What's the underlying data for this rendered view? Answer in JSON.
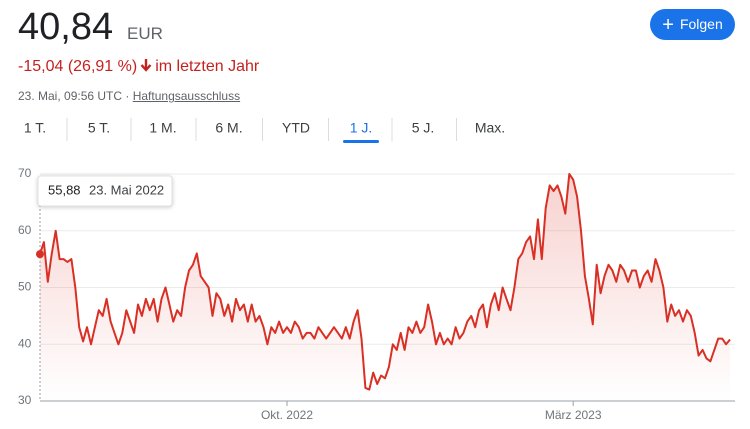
{
  "header": {
    "price": "40,84",
    "currency": "EUR",
    "change": "-15,04 (26,91 %)",
    "period": "im letzten Jahr",
    "timestamp": "23. Mai, 09:56 UTC ·",
    "disclaimer": "Haftungsausschluss",
    "follow": "Folgen"
  },
  "tabs": {
    "items": [
      "1 T.",
      "5 T.",
      "1 M.",
      "6 M.",
      "YTD",
      "1 J.",
      "5 J.",
      "Max."
    ],
    "active": 5
  },
  "chart_data": {
    "type": "line",
    "x": [
      0,
      1,
      2,
      3,
      4,
      5,
      6,
      7,
      8,
      9,
      10,
      11,
      12,
      13,
      14,
      15,
      16,
      17,
      18,
      19,
      20,
      21,
      22,
      23,
      24,
      25,
      26,
      27,
      28,
      29,
      30,
      31,
      32,
      33,
      34,
      35,
      36,
      37,
      38,
      39,
      40,
      41,
      42,
      43,
      44,
      45,
      46,
      47,
      48,
      49,
      50,
      51,
      52,
      53,
      54,
      55,
      56,
      57,
      58,
      59,
      60,
      61,
      62,
      63,
      64,
      65,
      66,
      67,
      68,
      69,
      70,
      71,
      72,
      73,
      74,
      75,
      76,
      77,
      78,
      79,
      80,
      81,
      82,
      83,
      84,
      85,
      86,
      87,
      88,
      89,
      90,
      91,
      92,
      93,
      94,
      95,
      96,
      97,
      98,
      99,
      100,
      101,
      102,
      103,
      104,
      105,
      106,
      107,
      108,
      109,
      110,
      111,
      112,
      113,
      114,
      115,
      116,
      117,
      118,
      119,
      120,
      121,
      122,
      123,
      124,
      125,
      126,
      127,
      128,
      129,
      130,
      131,
      132,
      133,
      134,
      135,
      136,
      137,
      138,
      139,
      140,
      141,
      142,
      143,
      144,
      145,
      146,
      147,
      148,
      149,
      150,
      151,
      152,
      153,
      154,
      155,
      156,
      157,
      158,
      159,
      160,
      161,
      162,
      163,
      164,
      165,
      166,
      167,
      168,
      169,
      170,
      171,
      172,
      173,
      174,
      175,
      176
    ],
    "series": [
      {
        "color": "#d93025",
        "values": [
          55.88,
          58,
          51,
          56,
          60,
          55,
          55,
          54.5,
          55,
          50,
          43,
          40.5,
          43,
          40,
          43,
          46,
          45,
          48,
          44,
          42,
          40,
          42,
          46,
          44,
          42,
          47,
          45,
          48,
          46,
          48,
          44,
          48,
          50,
          47,
          44,
          46,
          45,
          50,
          53,
          54,
          56,
          52,
          51,
          50,
          45,
          49,
          48,
          45,
          47,
          44,
          48,
          46,
          47,
          44,
          47,
          44,
          45,
          43,
          40,
          43,
          42,
          44,
          42,
          43,
          42,
          44,
          43,
          41,
          42,
          42,
          41,
          43,
          42,
          41,
          42,
          43,
          42,
          41,
          43,
          41,
          44,
          46,
          41,
          32.3,
          32,
          35,
          33,
          34.5,
          34,
          36,
          40,
          39,
          42,
          39,
          43,
          42,
          44,
          42,
          43,
          47,
          44,
          40,
          42,
          40,
          41,
          40,
          43,
          41,
          42,
          44,
          45,
          43,
          46,
          47,
          43,
          47,
          49,
          46,
          50,
          48,
          46,
          50,
          55,
          56,
          58,
          59,
          55,
          62,
          55,
          64,
          68,
          67,
          68,
          66,
          63,
          70,
          69,
          66,
          60,
          52,
          48,
          43.5,
          54,
          49,
          52,
          54,
          53,
          51,
          54,
          53,
          51,
          53,
          53,
          50,
          52,
          53,
          51,
          55,
          53,
          50,
          44,
          47,
          45,
          46,
          44,
          46,
          45,
          42,
          38,
          39,
          37.5,
          37,
          39,
          41,
          41,
          40,
          40.84
        ]
      }
    ],
    "xlim": [
      0,
      176
    ],
    "xticks": [
      {
        "value": 63,
        "label": "Okt. 2022"
      },
      {
        "value": 136,
        "label": "März 2023"
      }
    ],
    "ylim": [
      30,
      70
    ],
    "yticks": [
      30,
      40,
      50,
      60,
      70
    ],
    "grid": true,
    "tooltip": {
      "value": "55,88",
      "date": "23. Mai 2022"
    }
  }
}
